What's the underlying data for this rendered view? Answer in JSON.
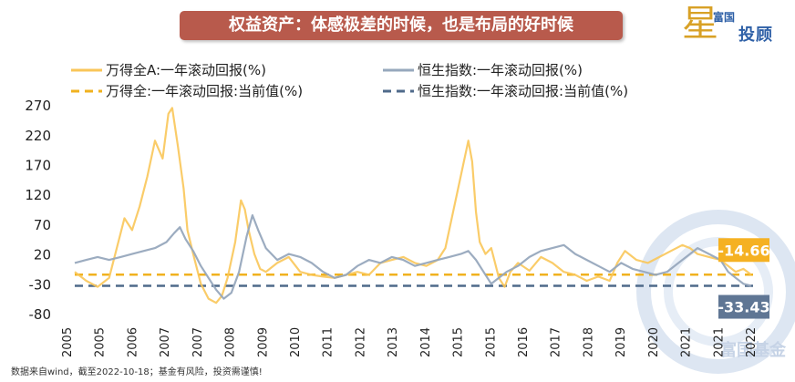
{
  "title": "权益资产：体感极差的时候，也是布局的好时候",
  "logo": {
    "line1": "富国",
    "line2": "投顾",
    "mark": "星"
  },
  "legend": [
    {
      "label": "万得全A:一年滚动回报(%)",
      "style": "solid",
      "color": "#f9c659"
    },
    {
      "label": "恒生指数:一年滚动回报(%)",
      "style": "solid",
      "color": "#97a8bd"
    },
    {
      "label": "万得全:一年滚动回报:当前值(%)",
      "style": "dashed",
      "color": "#f0b21f"
    },
    {
      "label": "恒生指数:一年滚动回报:当前值(%)",
      "style": "dashed",
      "color": "#4f6a8a"
    }
  ],
  "footnote": "数据来自wind，截至2022-10-18；基金有风险，投资需谨慎!",
  "watermark": "富国基金",
  "chart_data": {
    "type": "line",
    "title": "权益资产：体感极差的时候，也是布局的好时候",
    "xlabel": "",
    "ylabel": "",
    "ylim": [
      -80,
      290
    ],
    "yticks": [
      "270",
      "220",
      "170",
      "120",
      "70",
      "20",
      "-30",
      "-80"
    ],
    "xticks": [
      "2005",
      "2005",
      "2006",
      "2007",
      "2007",
      "2008",
      "2009",
      "2010",
      "2011",
      "2012",
      "2013",
      "2014",
      "2015",
      "2015",
      "2016",
      "2017",
      "2018",
      "2019",
      "2020",
      "2021",
      "2021",
      "2022"
    ],
    "xrange": [
      2005.0,
      2022.8
    ],
    "series": [
      {
        "name": "万得全A:一年滚动回报(%)",
        "color": "#f9c659",
        "x": [
          2005.0,
          2005.3,
          2005.6,
          2005.9,
          2006.1,
          2006.3,
          2006.5,
          2006.7,
          2006.9,
          2007.1,
          2007.3,
          2007.45,
          2007.55,
          2007.7,
          2007.85,
          2007.95,
          2008.1,
          2008.3,
          2008.5,
          2008.7,
          2008.85,
          2009.0,
          2009.2,
          2009.35,
          2009.45,
          2009.55,
          2009.7,
          2009.85,
          2010.0,
          2010.3,
          2010.6,
          2010.9,
          2011.2,
          2011.5,
          2011.8,
          2012.1,
          2012.4,
          2012.7,
          2013.0,
          2013.3,
          2013.6,
          2013.9,
          2014.2,
          2014.5,
          2014.7,
          2014.9,
          2015.1,
          2015.3,
          2015.4,
          2015.5,
          2015.6,
          2015.75,
          2015.9,
          2016.0,
          2016.1,
          2016.25,
          2016.4,
          2016.6,
          2016.9,
          2017.2,
          2017.5,
          2017.8,
          2018.1,
          2018.4,
          2018.7,
          2019.0,
          2019.2,
          2019.4,
          2019.7,
          2020.0,
          2020.3,
          2020.6,
          2020.9,
          2021.1,
          2021.3,
          2021.6,
          2021.9,
          2022.1,
          2022.3,
          2022.5,
          2022.7
        ],
        "values": [
          -10,
          -25,
          -35,
          -20,
          30,
          80,
          60,
          100,
          150,
          210,
          180,
          255,
          265,
          200,
          130,
          60,
          20,
          -30,
          -55,
          -62,
          -50,
          -20,
          40,
          110,
          95,
          60,
          20,
          -5,
          -10,
          5,
          15,
          -10,
          -15,
          -18,
          -20,
          -15,
          -10,
          -15,
          5,
          10,
          15,
          5,
          0,
          10,
          30,
          90,
          150,
          210,
          175,
          90,
          40,
          20,
          30,
          5,
          -20,
          -35,
          -10,
          5,
          -8,
          15,
          5,
          -10,
          -15,
          -25,
          -18,
          -25,
          5,
          25,
          10,
          5,
          15,
          25,
          35,
          30,
          20,
          15,
          10,
          0,
          -10,
          -5,
          -14.66
        ]
      },
      {
        "name": "恒生指数:一年滚动回报(%)",
        "color": "#97a8bd",
        "x": [
          2005.0,
          2005.3,
          2005.6,
          2005.9,
          2006.2,
          2006.5,
          2006.8,
          2007.1,
          2007.4,
          2007.6,
          2007.75,
          2007.9,
          2008.1,
          2008.3,
          2008.5,
          2008.7,
          2008.9,
          2009.1,
          2009.3,
          2009.5,
          2009.65,
          2009.8,
          2010.0,
          2010.3,
          2010.6,
          2010.9,
          2011.2,
          2011.5,
          2011.8,
          2012.1,
          2012.4,
          2012.7,
          2013.0,
          2013.3,
          2013.6,
          2013.9,
          2014.2,
          2014.5,
          2014.8,
          2015.1,
          2015.3,
          2015.5,
          2015.7,
          2015.9,
          2016.1,
          2016.3,
          2016.6,
          2016.9,
          2017.2,
          2017.5,
          2017.8,
          2018.1,
          2018.4,
          2018.7,
          2019.0,
          2019.3,
          2019.6,
          2019.9,
          2020.2,
          2020.5,
          2020.8,
          2021.1,
          2021.3,
          2021.6,
          2021.9,
          2022.1,
          2022.3,
          2022.5,
          2022.7
        ],
        "values": [
          5,
          10,
          15,
          10,
          15,
          20,
          25,
          30,
          40,
          55,
          65,
          45,
          25,
          0,
          -20,
          -40,
          -55,
          -45,
          -10,
          50,
          85,
          60,
          30,
          10,
          20,
          15,
          5,
          -10,
          -20,
          -15,
          0,
          10,
          5,
          15,
          10,
          0,
          5,
          10,
          15,
          20,
          25,
          10,
          -10,
          -30,
          -20,
          -10,
          0,
          15,
          25,
          30,
          35,
          20,
          10,
          0,
          -10,
          5,
          -5,
          -10,
          -15,
          -10,
          5,
          20,
          30,
          20,
          10,
          -10,
          -20,
          -30,
          -33.43
        ]
      }
    ],
    "reference_lines": [
      {
        "name": "万得全:一年滚动回报:当前值(%)",
        "value": -14.66,
        "label": "-14.66",
        "color": "#f0b21f"
      },
      {
        "name": "恒生指数:一年滚动回报:当前值(%)",
        "value": -33.43,
        "label": "-33.43",
        "color": "#4f6a8a"
      }
    ]
  }
}
